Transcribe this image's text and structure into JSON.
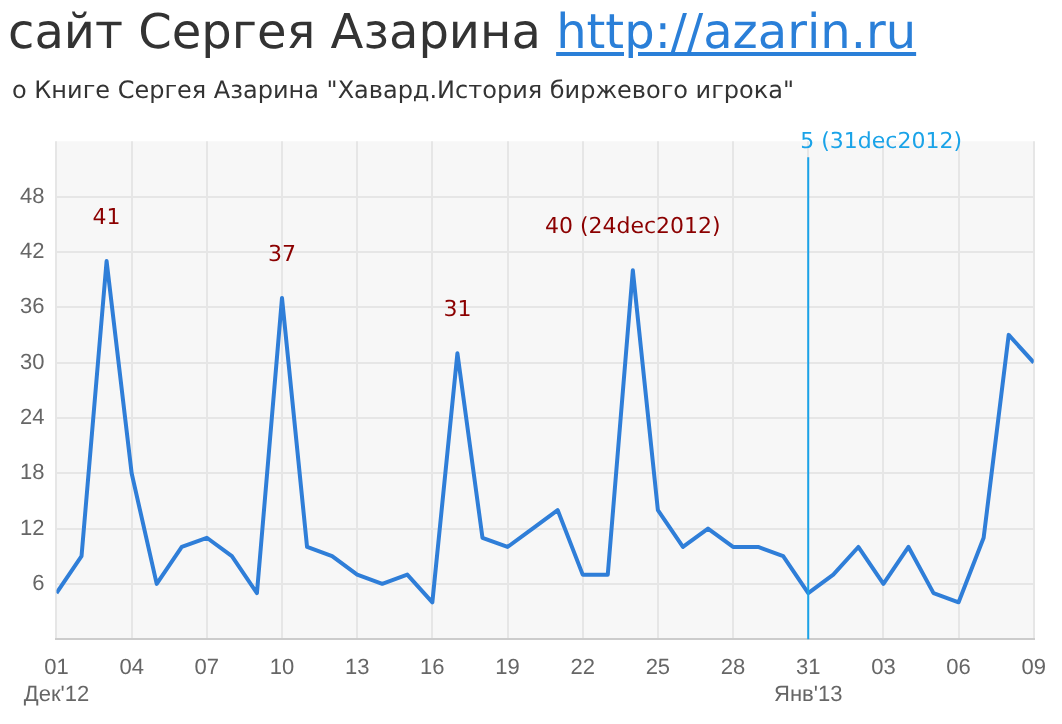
{
  "chart_data": {
    "type": "line",
    "title": "сайт Сергея Азарина http://azarin.ru",
    "subtitle": "о Книге Сергея Азарина \"Хавард.История биржевого игрока\"",
    "x": [
      "2012-12-01",
      "2012-12-02",
      "2012-12-03",
      "2012-12-04",
      "2012-12-05",
      "2012-12-06",
      "2012-12-07",
      "2012-12-08",
      "2012-12-09",
      "2012-12-10",
      "2012-12-11",
      "2012-12-12",
      "2012-12-13",
      "2012-12-14",
      "2012-12-15",
      "2012-12-16",
      "2012-12-17",
      "2012-12-18",
      "2012-12-19",
      "2012-12-20",
      "2012-12-21",
      "2012-12-22",
      "2012-12-23",
      "2012-12-24",
      "2012-12-25",
      "2012-12-26",
      "2012-12-27",
      "2012-12-28",
      "2012-12-29",
      "2012-12-30",
      "2012-12-31",
      "2013-01-01",
      "2013-01-02",
      "2013-01-03",
      "2013-01-04",
      "2013-01-05",
      "2013-01-06",
      "2013-01-07",
      "2013-01-08",
      "2013-01-09"
    ],
    "series": [
      {
        "color": "#2f7ed8",
        "values": [
          5,
          9,
          41,
          18,
          6,
          10,
          11,
          9,
          5,
          37,
          10,
          9,
          7,
          6,
          7,
          4,
          31,
          11,
          10,
          12,
          14,
          7,
          7,
          40,
          14,
          10,
          12,
          10,
          10,
          9,
          5,
          7,
          10,
          6,
          10,
          5,
          4,
          11,
          33,
          30
        ]
      }
    ],
    "xlim": [
      "2012-12-01",
      "2013-01-09"
    ],
    "xticks": [
      {
        "value": "2012-12-01",
        "label": "01\nДек'12"
      },
      {
        "value": "2012-12-04",
        "label": "04"
      },
      {
        "value": "2012-12-07",
        "label": "07"
      },
      {
        "value": "2012-12-10",
        "label": "10"
      },
      {
        "value": "2012-12-13",
        "label": "13"
      },
      {
        "value": "2012-12-16",
        "label": "16"
      },
      {
        "value": "2012-12-19",
        "label": "19"
      },
      {
        "value": "2012-12-22",
        "label": "22"
      },
      {
        "value": "2012-12-25",
        "label": "25"
      },
      {
        "value": "2012-12-28",
        "label": "28"
      },
      {
        "value": "2012-12-31",
        "label": "31\nЯнв'13"
      },
      {
        "value": "2013-01-03",
        "label": "03"
      },
      {
        "value": "2013-01-06",
        "label": "06"
      },
      {
        "value": "2013-01-09",
        "label": "09"
      }
    ],
    "ylim": [
      0,
      54
    ],
    "yticks": [
      6,
      12,
      18,
      24,
      30,
      36,
      42,
      48
    ],
    "annotations": [
      {
        "text": "41",
        "x": "2012-12-03",
        "y": 41
      },
      {
        "text": "37",
        "x": "2012-12-10",
        "y": 37
      },
      {
        "text": "31",
        "x": "2012-12-17",
        "y": 31
      },
      {
        "text": "40 (24dec2012)",
        "x": "2012-12-24",
        "y": 40
      }
    ],
    "ref_lines": [
      {
        "axis": "x",
        "value": "2012-12-31",
        "label": "5 (31dec2012)",
        "color": "#1aa3e8"
      }
    ],
    "grid": true,
    "legend": false,
    "marker": "none",
    "line_style": "solid"
  }
}
